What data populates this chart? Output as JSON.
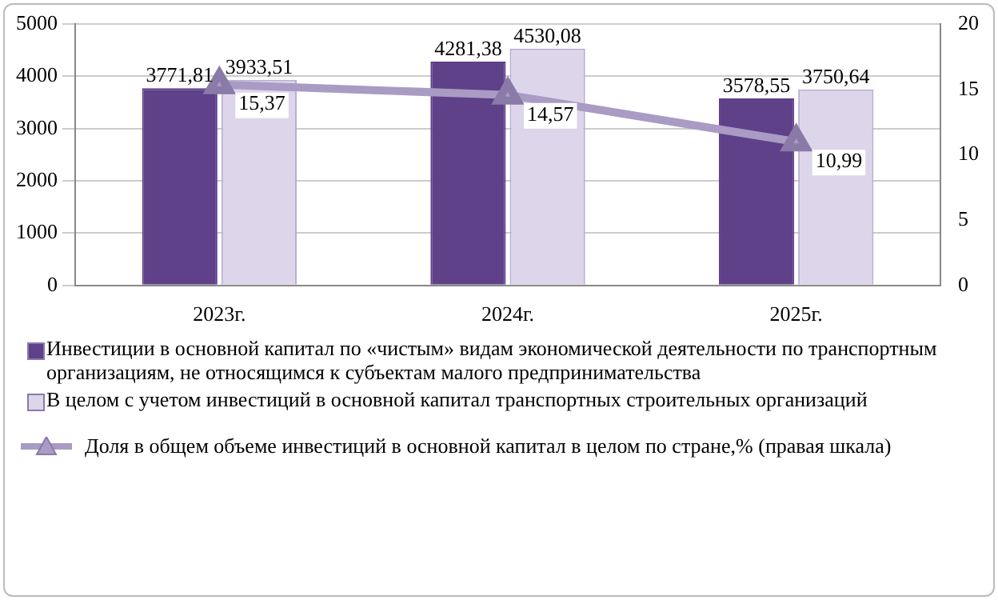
{
  "chart_data": {
    "type": "bar",
    "categories": [
      "2023г.",
      "2024г.",
      "2025г."
    ],
    "series": [
      {
        "name": "Инвестиции в основной капитал по «чистым» видам экономической деятельности по транспортным организациям, не относящимся к субъектам малого предпринимательства",
        "color": "#5e4189",
        "values": [
          3771.81,
          4281.38,
          3578.55
        ],
        "value_labels": [
          "3771,81",
          "4281,38",
          "3578,55"
        ]
      },
      {
        "name": "В целом с учетом инвестиций в основной капитал транспортных строительных организаций",
        "color": "#ddd5ea",
        "values": [
          3933.51,
          4530.08,
          3750.64
        ],
        "value_labels": [
          "3933,51",
          "4530,08",
          "3750,64"
        ]
      },
      {
        "name": "Доля в общем  объеме  инвестиций  в  основной  капитал в целом по стране,% (правая шкала)",
        "type": "line",
        "axis": "y2",
        "color": "#a99bc4",
        "values": [
          15.37,
          14.57,
          10.99
        ],
        "value_labels": [
          "15,37",
          "14,57",
          "10,99"
        ]
      }
    ],
    "ylim": [
      0,
      5000
    ],
    "yticks": [
      0,
      1000,
      2000,
      3000,
      4000,
      5000
    ],
    "y2lim": [
      0,
      20
    ],
    "y2ticks": [
      0,
      5,
      10,
      15,
      20
    ],
    "grid": "y",
    "legend": "bottom",
    "marker": "triangle"
  }
}
